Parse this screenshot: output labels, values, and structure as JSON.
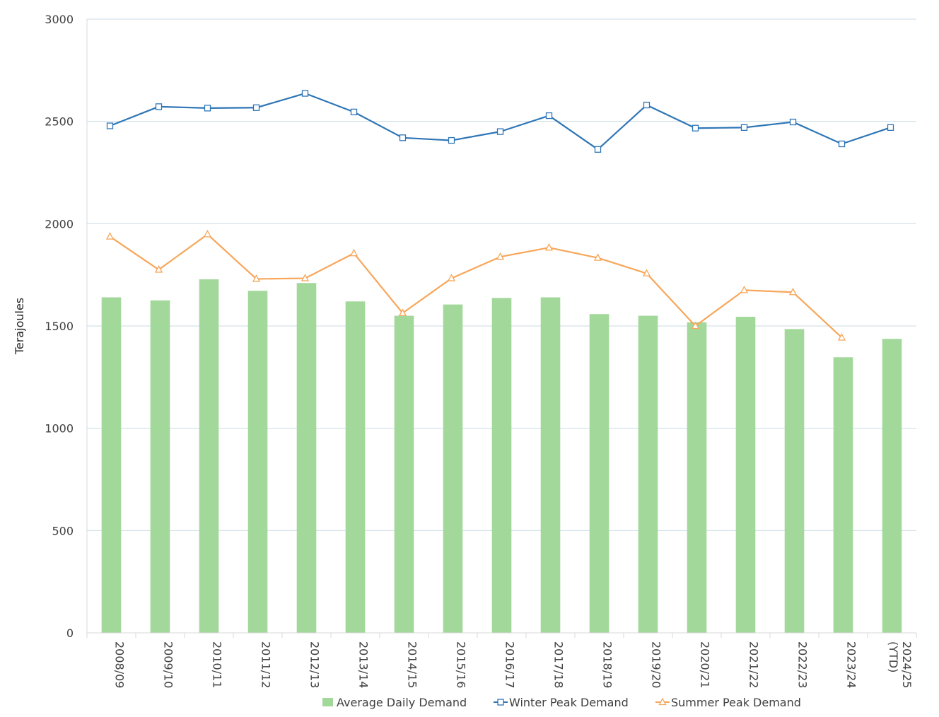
{
  "chart_data": {
    "type": "bar",
    "title": "",
    "xlabel": "",
    "ylabel": "Terajoules",
    "ylim": [
      0,
      3000
    ],
    "yticks": [
      0,
      500,
      1000,
      1500,
      2000,
      2500,
      3000
    ],
    "grid": true,
    "legend_position": "bottom",
    "categories": [
      [
        "2008/09"
      ],
      [
        "2009/10"
      ],
      [
        "2010/11"
      ],
      [
        "2011/12"
      ],
      [
        "2012/13"
      ],
      [
        "2013/14"
      ],
      [
        "2014/15"
      ],
      [
        "2015/16"
      ],
      [
        "2016/17"
      ],
      [
        "2017/18"
      ],
      [
        "2018/19"
      ],
      [
        "2019/20"
      ],
      [
        "2020/21"
      ],
      [
        "2021/22"
      ],
      [
        "2022/23"
      ],
      [
        "2023/24"
      ],
      [
        "2024/25",
        "(YTD)"
      ]
    ],
    "series": [
      {
        "name": "Average Daily Demand",
        "type": "bar",
        "color": "#a3d89b",
        "values": [
          1640,
          1625,
          1728,
          1672,
          1710,
          1620,
          1550,
          1605,
          1637,
          1640,
          1558,
          1550,
          1518,
          1545,
          1485,
          1347,
          1437
        ]
      },
      {
        "name": "Winter Peak Demand",
        "type": "line",
        "marker": "square",
        "color": "#2e75b6",
        "values": [
          2478,
          2572,
          2565,
          2567,
          2637,
          2546,
          2420,
          2407,
          2450,
          2528,
          2363,
          2580,
          2467,
          2470,
          2497,
          2390,
          2470
        ]
      },
      {
        "name": "Summer Peak Demand",
        "type": "line",
        "marker": "triangle",
        "color": "#f8a65a",
        "values": [
          1937,
          1775,
          1948,
          1730,
          1733,
          1855,
          1563,
          1733,
          1838,
          1883,
          1833,
          1757,
          1500,
          1675,
          1665,
          1443,
          null
        ]
      }
    ]
  }
}
